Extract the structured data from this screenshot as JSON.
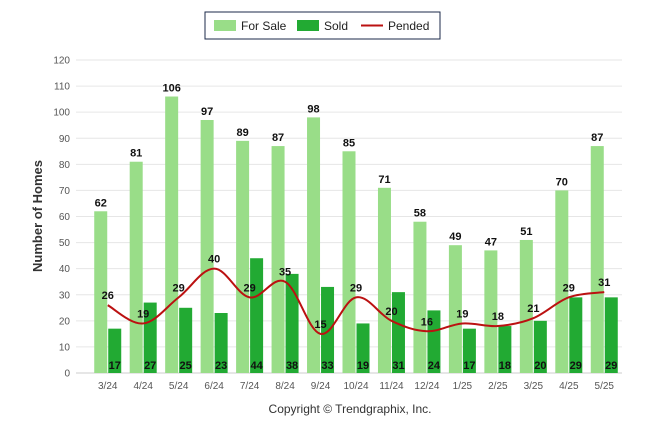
{
  "chart_data": {
    "type": "bar",
    "categories": [
      "3/24",
      "4/24",
      "5/24",
      "6/24",
      "7/24",
      "8/24",
      "9/24",
      "10/24",
      "11/24",
      "12/24",
      "1/25",
      "2/25",
      "3/25",
      "4/25",
      "5/25"
    ],
    "series": [
      {
        "name": "For Sale",
        "type": "bar",
        "color": "#99dd88",
        "values": [
          62,
          81,
          106,
          97,
          89,
          87,
          98,
          85,
          71,
          58,
          49,
          47,
          51,
          70,
          87
        ]
      },
      {
        "name": "Sold",
        "type": "bar",
        "color": "#22aa33",
        "values": [
          17,
          27,
          25,
          23,
          44,
          38,
          33,
          19,
          31,
          24,
          17,
          18,
          20,
          29,
          29
        ]
      },
      {
        "name": "Pended",
        "type": "line",
        "color": "#bb1111",
        "values": [
          26,
          19,
          29,
          40,
          29,
          35,
          15,
          29,
          20,
          16,
          19,
          18,
          21,
          29,
          31
        ]
      }
    ],
    "ylabel": "Number of Homes",
    "xlabel": "",
    "ylim": [
      0,
      120
    ],
    "yticks": [
      0,
      10,
      20,
      30,
      40,
      50,
      60,
      70,
      80,
      90,
      100,
      110,
      120
    ],
    "grid": true,
    "legend": "top-center"
  },
  "footer": {
    "credit": "Copyright © Trendgraphix, Inc."
  }
}
